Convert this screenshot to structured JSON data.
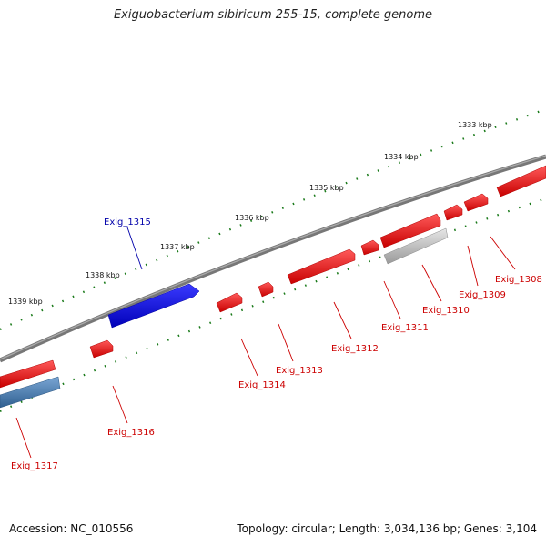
{
  "title": "Exiguobacterium sibiricum 255-15, complete genome",
  "footer": {
    "accession": "Accession: NC_010556",
    "stats": "Topology: circular; Length: 3,034,136 bp; Genes: 3,104"
  },
  "scale_labels": [
    "1333 kbp",
    "1334 kbp",
    "1335 kbp",
    "1336 kbp",
    "1337 kbp",
    "1338 kbp",
    "1339 kbp"
  ],
  "genes": [
    {
      "label": "Exig_1308",
      "strand": "minus"
    },
    {
      "label": "Exig_1309",
      "strand": "minus"
    },
    {
      "label": "Exig_1310",
      "strand": "minus"
    },
    {
      "label": "Exig_1311",
      "strand": "minus"
    },
    {
      "label": "Exig_1312",
      "strand": "minus"
    },
    {
      "label": "Exig_1313",
      "strand": "minus"
    },
    {
      "label": "Exig_1314",
      "strand": "minus"
    },
    {
      "label": "Exig_1315",
      "strand": "plus"
    },
    {
      "label": "Exig_1316",
      "strand": "minus"
    },
    {
      "label": "Exig_1317",
      "strand": "minus"
    }
  ],
  "colors": {
    "gene_plus": "#0000ee",
    "gene_minus": "#ee0000",
    "label_plus": "#0000aa",
    "label_minus": "#cc0000",
    "pseudo_gene": "#b8b8b8",
    "other_gene": "#4a7fb5",
    "backbone": "#777777",
    "ticks": "#1a7a1a"
  }
}
